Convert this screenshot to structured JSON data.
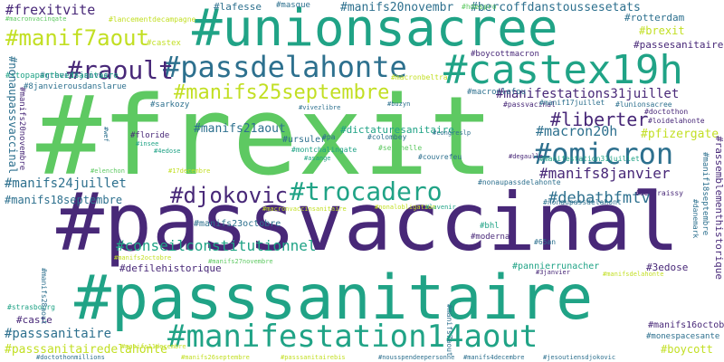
{
  "cloud": {
    "background": "#ffffff",
    "palette": {
      "purple": "#482878",
      "blue": "#2d708e",
      "teal": "#20a386",
      "green": "#5ec962",
      "yellow": "#c2df23"
    },
    "words": [
      {
        "text": "#passvaccinal",
        "color": "#482878"
      },
      {
        "text": "#frexit",
        "color": "#5ec962"
      },
      {
        "text": "#passsanitaire",
        "color": "#20a386"
      },
      {
        "text": "#unionsacree",
        "color": "#20a386"
      },
      {
        "text": "#castex19h",
        "color": "#20a386"
      },
      {
        "text": "#passdelahonte",
        "color": "#2d708e"
      },
      {
        "text": "#manifestation14aout",
        "color": "#20a386"
      },
      {
        "text": "#omicron",
        "color": "#2d708e"
      },
      {
        "text": "#trocadero",
        "color": "#20a386"
      },
      {
        "text": "#raoult",
        "color": "#482878"
      },
      {
        "text": "#manif7aout",
        "color": "#c2df23"
      },
      {
        "text": "#djokovic",
        "color": "#482878"
      },
      {
        "text": "#manifs25septembre",
        "color": "#c2df23"
      },
      {
        "text": "#liberter",
        "color": "#482878"
      },
      {
        "text": "#macron20h",
        "color": "#2d708e"
      },
      {
        "text": "#manifs8janvier",
        "color": "#482878"
      },
      {
        "text": "#manifestations31juillet",
        "color": "#482878"
      },
      {
        "text": "#conseilconstitutionnel",
        "color": "#20a386"
      },
      {
        "text": "#debatbfmtv",
        "color": "#2d708e"
      },
      {
        "text": "#frexitvite",
        "color": "#482878"
      },
      {
        "text": "#manifs20novembr",
        "color": "#2d708e"
      },
      {
        "text": "#bercoffdanstoussesetats",
        "color": "#2d708e"
      },
      {
        "text": "#lafesse",
        "color": "#2d708e"
      },
      {
        "text": "#manifs24juillet",
        "color": "#2d708e"
      },
      {
        "text": "#passsanitairedelahonte",
        "color": "#c2df23"
      },
      {
        "text": "#pfizergate",
        "color": "#c2df23"
      },
      {
        "text": "#manifs21aout",
        "color": "#2d708e"
      },
      {
        "text": "#dictaturesanitaire",
        "color": "#20a386"
      },
      {
        "text": "#passsanitaire",
        "color": "#2d708e"
      },
      {
        "text": "#manifs18septembre",
        "color": "#2d708e"
      },
      {
        "text": "#rotterdam",
        "color": "#2d708e"
      },
      {
        "text": "#brexit",
        "color": "#c2df23"
      },
      {
        "text": "#passesanitaire",
        "color": "#482878"
      },
      {
        "text": "#manifs23octobre",
        "color": "#2d708e"
      },
      {
        "text": "#defilehistorique",
        "color": "#482878"
      },
      {
        "text": "#boycott",
        "color": "#c2df23"
      },
      {
        "text": "#3edose",
        "color": "#482878"
      },
      {
        "text": "#caste",
        "color": "#482878"
      },
      {
        "text": "#ursuler",
        "color": "#2d708e"
      },
      {
        "text": "#sarkozy",
        "color": "#2d708e"
      },
      {
        "text": "#macronlefou",
        "color": "#2d708e"
      },
      {
        "text": "#manifs16octobre",
        "color": "#482878"
      },
      {
        "text": "#castex",
        "color": "#c2df23"
      },
      {
        "text": "#greve13janvier",
        "color": "#2d708e"
      },
      {
        "text": "#boycottmacron",
        "color": "#482878"
      },
      {
        "text": "#masque",
        "color": "#2d708e"
      },
      {
        "text": "#hdespro",
        "color": "#5ec962"
      },
      {
        "text": "#stopapartheidsanitaire",
        "color": "#20a386"
      },
      {
        "text": "#8janvierousdanslarue",
        "color": "#2d708e"
      },
      {
        "text": "#manifestation31juillet",
        "color": "#20a386"
      },
      {
        "text": "#doctothon",
        "color": "#482878"
      },
      {
        "text": "#loidelahonte",
        "color": "#482878"
      },
      {
        "text": "#rassemblementhistorique",
        "color": "#482878"
      },
      {
        "text": "#manif18septembre",
        "color": "#2d708e"
      },
      {
        "text": "#nonaupassvaccinal",
        "color": "#2d708e"
      },
      {
        "text": "#macronvacinqate",
        "color": "#5ec962"
      },
      {
        "text": "#lancementdecampagne",
        "color": "#c2df23"
      },
      {
        "text": "#nonaupassdelahonte",
        "color": "#2d708e"
      },
      {
        "text": "#nonaupassdelahont",
        "color": "#2d708e"
      },
      {
        "text": "#moderna",
        "color": "#482878"
      },
      {
        "text": "#bhl",
        "color": "#20a386"
      },
      {
        "text": "#65an",
        "color": "#2d708e"
      },
      {
        "text": "#pannierrunacher",
        "color": "#20a386"
      },
      {
        "text": "#monespacesante",
        "color": "#2d708e"
      },
      {
        "text": "#floride",
        "color": "#482878"
      },
      {
        "text": "#montchalingate",
        "color": "#20a386"
      },
      {
        "text": "#pa",
        "color": "#2d708e"
      },
      {
        "text": "#colombey",
        "color": "#2d708e"
      },
      {
        "text": "#couvrefeu",
        "color": "#2d708e"
      },
      {
        "text": "#seychelle",
        "color": "#5ec962"
      },
      {
        "text": "#strasbourg",
        "color": "#20a386"
      },
      {
        "text": "#manifs28aout",
        "color": "#2d708e"
      },
      {
        "text": "#manifs20novembre",
        "color": "#482878"
      },
      {
        "text": "#manifs7aout",
        "color": "#2d708e"
      },
      {
        "text": "#lunionsacree",
        "color": "#2d708e"
      },
      {
        "text": "#passvacinal",
        "color": "#482878"
      },
      {
        "text": "#manif17juillet",
        "color": "#2d708e"
      },
      {
        "text": "#danemark",
        "color": "#2d708e"
      },
      {
        "text": "#delfraissy",
        "color": "#482878"
      },
      {
        "text": "#degaulle",
        "color": "#482878"
      },
      {
        "text": "#congreslp",
        "color": "#2d708e"
      },
      {
        "text": "#vivezlibre",
        "color": "#2d708e"
      },
      {
        "text": "#buzyn",
        "color": "#2d708e"
      },
      {
        "text": "#elenchon",
        "color": "#5ec962"
      },
      {
        "text": "#3janvier",
        "color": "#482878"
      },
      {
        "text": "#4edose",
        "color": "#20a386"
      },
      {
        "text": "#insee",
        "color": "#20a386"
      },
      {
        "text": "#asange",
        "color": "#20a386"
      },
      {
        "text": "#wef",
        "color": "#2d708e"
      },
      {
        "text": "#lavenir",
        "color": "#20a386"
      },
      {
        "text": "#macronbeltra",
        "color": "#c2df23"
      },
      {
        "text": "#jesoutiensdjokovic",
        "color": "#2d708e"
      },
      {
        "text": "#manifs4decembre",
        "color": "#2d708e"
      },
      {
        "text": "#nousspendeepersonne",
        "color": "#2d708e"
      },
      {
        "text": "#macronvaccinsanitaire",
        "color": "#c2df23"
      },
      {
        "text": "#manifs26septembre",
        "color": "#c2df23"
      },
      {
        "text": "#doctothonmillions",
        "color": "#2d708e"
      },
      {
        "text": "#manifs2octobre",
        "color": "#c2df23"
      },
      {
        "text": "#passsanitairebis",
        "color": "#c2df23"
      },
      {
        "text": "#17decembre",
        "color": "#c2df23"
      },
      {
        "text": "#nonalobligation",
        "color": "#c2df23"
      },
      {
        "text": "#manifsdelahonte",
        "color": "#c2df23"
      },
      {
        "text": "#manifs11decembre",
        "color": "#c2df23"
      },
      {
        "text": "#manifs27novembre",
        "color": "#5ec962"
      }
    ]
  }
}
